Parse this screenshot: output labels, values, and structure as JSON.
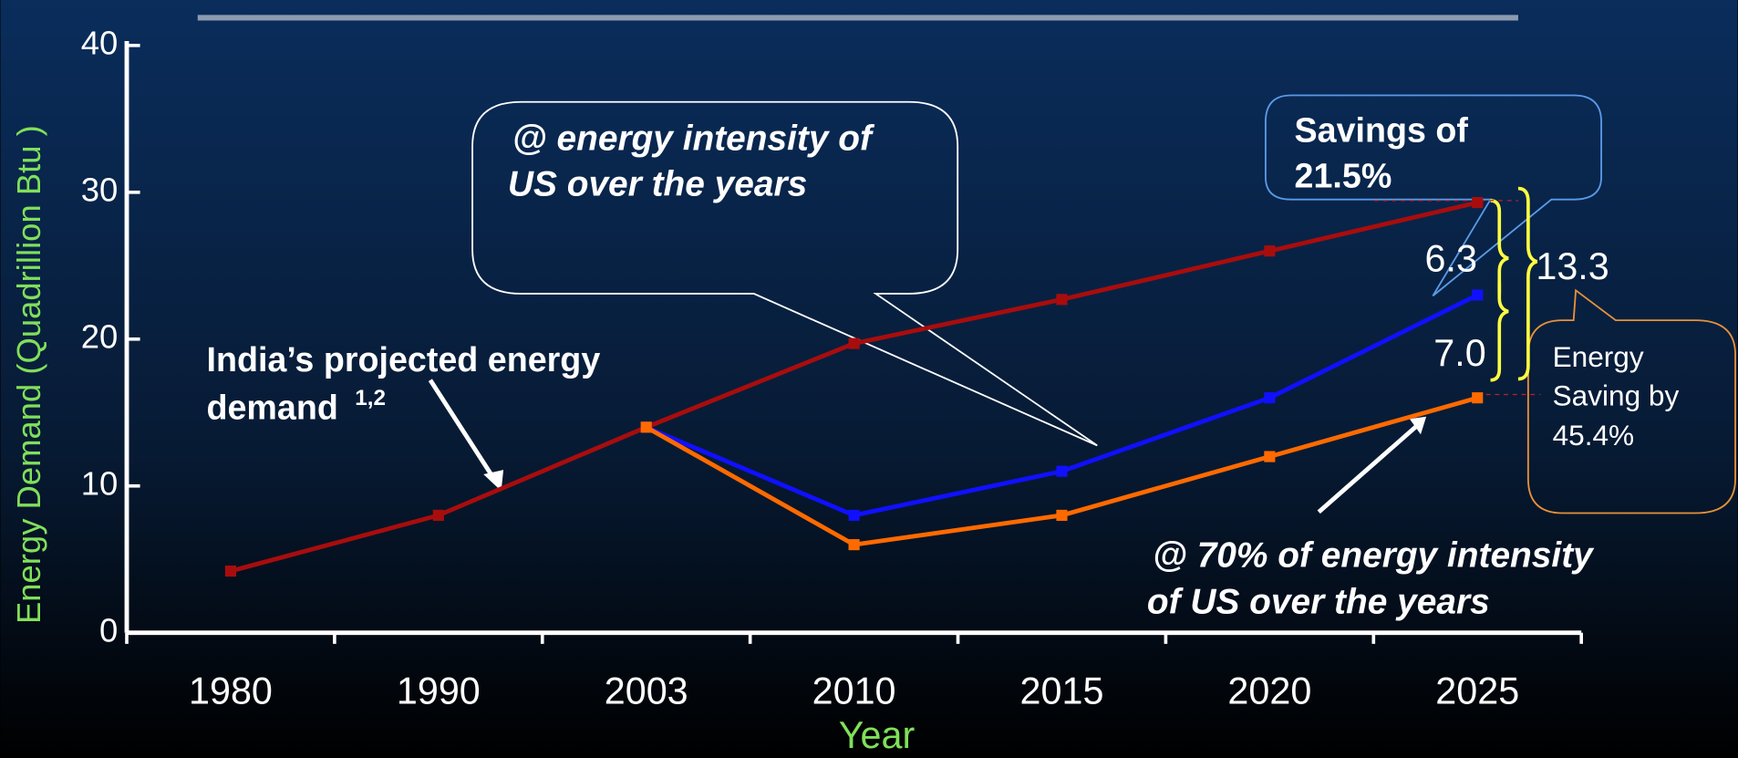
{
  "chart_data": {
    "type": "line",
    "x_label": "Year",
    "y_label": "Energy Demand (Quadrillion Btu )",
    "categories": [
      "1980",
      "1990",
      "2003",
      "2010",
      "2015",
      "2020",
      "2025"
    ],
    "series": [
      {
        "name": "India’s projected energy demand",
        "color": "#a80d0d",
        "values": [
          4.2,
          8,
          14,
          19.7,
          22.7,
          26,
          29.3
        ]
      },
      {
        "name": "@ energy intensity of US over the years",
        "color": "#1010ff",
        "values": [
          null,
          null,
          14,
          8,
          11,
          16,
          23
        ]
      },
      {
        "name": "@ 70% of energy intensity of US over the years",
        "color": "#ff6a00",
        "values": [
          null,
          null,
          14,
          6,
          8,
          12,
          16
        ]
      }
    ],
    "ylim": [
      0,
      40
    ],
    "yticks": [
      0,
      10,
      20,
      30,
      40
    ],
    "annotations": {
      "india_label": "India’s projected energy",
      "india_label2": "demand",
      "india_sup": "1,2",
      "us_label": "@ energy intensity of",
      "us_label2": "US over the years",
      "seventy_label": "@ 70% of energy intensity",
      "seventy_label2": "of US over the years",
      "savings": "Savings of",
      "savings2": "21.5%",
      "gap_top": "6.3",
      "gap_bottom": "7.0",
      "gap_total": "13.3",
      "saving_by": "Energy",
      "saving_by2": "Saving by",
      "saving_by3": "45.4%"
    }
  }
}
